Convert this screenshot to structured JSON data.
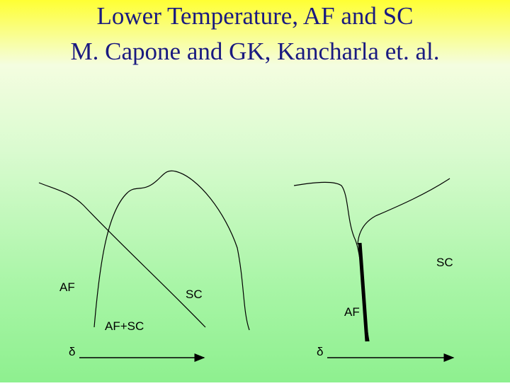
{
  "title": {
    "line1": "Lower Temperature,  AF and SC",
    "line2": "M. Capone and GK, Kancharla et. al."
  },
  "left_diagram": {
    "labels": [
      "AF",
      "SC",
      "AF+SC"
    ],
    "axis_label": "δ"
  },
  "right_diagram": {
    "labels": [
      "SC",
      "AF"
    ],
    "axis_label": "δ"
  }
}
